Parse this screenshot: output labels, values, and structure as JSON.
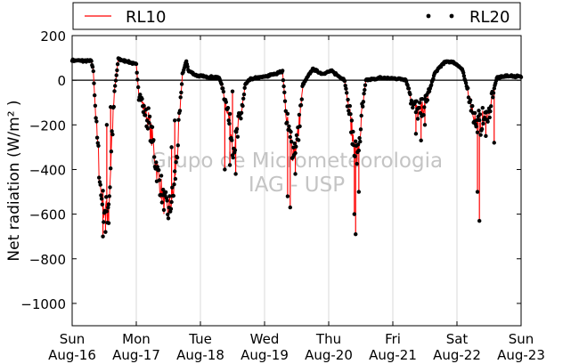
{
  "chart_data": {
    "type": "line",
    "title": "",
    "xlabel": "",
    "ylabel": "Net radiation (W/m² )",
    "ylim": [
      -1100,
      200
    ],
    "xlim": [
      0,
      7
    ],
    "yticks": [
      200,
      0,
      -200,
      -400,
      -600,
      -800,
      -1000
    ],
    "ytick_labels": [
      "200",
      "0",
      "−200",
      "−400",
      "−600",
      "−800",
      "−1000"
    ],
    "xticks": [
      {
        "x": 0,
        "day": "Sun",
        "date": "Aug-16"
      },
      {
        "x": 1,
        "day": "Mon",
        "date": "Aug-17"
      },
      {
        "x": 2,
        "day": "Tue",
        "date": "Aug-18"
      },
      {
        "x": 3,
        "day": "Wed",
        "date": "Aug-19"
      },
      {
        "x": 4,
        "day": "Thu",
        "date": "Aug-20"
      },
      {
        "x": 5,
        "day": "Fri",
        "date": "Aug-21"
      },
      {
        "x": 6,
        "day": "Sat",
        "date": "Aug-22"
      },
      {
        "x": 7,
        "day": "Sun",
        "date": "Aug-23"
      }
    ],
    "grid": "vertical",
    "zero_line": true,
    "legend": {
      "placement": "top",
      "entries": [
        {
          "label": "RL10",
          "style": "line",
          "color": "#ff0000"
        },
        {
          "label": "RL20",
          "style": "dots",
          "color": "#000000"
        }
      ]
    },
    "watermark": [
      "Grupo de Micrometeorologia",
      "IAG - USP"
    ],
    "series_keypoints": [
      {
        "x": 0.0,
        "y": 90
      },
      {
        "x": 0.3,
        "y": 85
      },
      {
        "x": 0.33,
        "y": 40
      },
      {
        "x": 0.38,
        "y": -220
      },
      {
        "x": 0.44,
        "y": -480
      },
      {
        "x": 0.5,
        "y": -580
      },
      {
        "x": 0.55,
        "y": -600
      },
      {
        "x": 0.58,
        "y": -520
      },
      {
        "x": 0.62,
        "y": -250
      },
      {
        "x": 0.66,
        "y": -50
      },
      {
        "x": 0.72,
        "y": 95
      },
      {
        "x": 0.85,
        "y": 85
      },
      {
        "x": 0.96,
        "y": 75
      },
      {
        "x": 1.0,
        "y": 70
      },
      {
        "x": 1.04,
        "y": -60
      },
      {
        "x": 1.2,
        "y": -190
      },
      {
        "x": 1.35,
        "y": -440
      },
      {
        "x": 1.45,
        "y": -570
      },
      {
        "x": 1.5,
        "y": -590
      },
      {
        "x": 1.58,
        "y": -500
      },
      {
        "x": 1.66,
        "y": -250
      },
      {
        "x": 1.72,
        "y": 30
      },
      {
        "x": 1.78,
        "y": 85
      },
      {
        "x": 1.82,
        "y": 40
      },
      {
        "x": 1.95,
        "y": 20
      },
      {
        "x": 2.3,
        "y": 10
      },
      {
        "x": 2.4,
        "y": -100
      },
      {
        "x": 2.52,
        "y": -300
      },
      {
        "x": 2.62,
        "y": -180
      },
      {
        "x": 2.7,
        "y": -20
      },
      {
        "x": 2.78,
        "y": 5
      },
      {
        "x": 3.0,
        "y": 15
      },
      {
        "x": 3.28,
        "y": 40
      },
      {
        "x": 3.35,
        "y": -200
      },
      {
        "x": 3.45,
        "y": -320
      },
      {
        "x": 3.52,
        "y": -250
      },
      {
        "x": 3.6,
        "y": -20
      },
      {
        "x": 3.75,
        "y": 50
      },
      {
        "x": 3.9,
        "y": 30
      },
      {
        "x": 4.05,
        "y": 40
      },
      {
        "x": 4.25,
        "y": 0
      },
      {
        "x": 4.38,
        "y": -260
      },
      {
        "x": 4.45,
        "y": -350
      },
      {
        "x": 4.52,
        "y": -150
      },
      {
        "x": 4.58,
        "y": 0
      },
      {
        "x": 4.8,
        "y": 10
      },
      {
        "x": 5.2,
        "y": 5
      },
      {
        "x": 5.32,
        "y": -110
      },
      {
        "x": 5.4,
        "y": -150
      },
      {
        "x": 5.48,
        "y": -120
      },
      {
        "x": 5.56,
        "y": -60
      },
      {
        "x": 5.65,
        "y": 30
      },
      {
        "x": 5.8,
        "y": 80
      },
      {
        "x": 5.92,
        "y": 85
      },
      {
        "x": 6.0,
        "y": 70
      },
      {
        "x": 6.08,
        "y": 50
      },
      {
        "x": 6.18,
        "y": -60
      },
      {
        "x": 6.3,
        "y": -200
      },
      {
        "x": 6.4,
        "y": -180
      },
      {
        "x": 6.5,
        "y": -140
      },
      {
        "x": 6.62,
        "y": 10
      },
      {
        "x": 6.8,
        "y": 20
      },
      {
        "x": 7.0,
        "y": 15
      }
    ],
    "spikes": [
      {
        "x": 0.48,
        "y": -700
      },
      {
        "x": 0.52,
        "y": -680
      },
      {
        "x": 0.57,
        "y": -640
      },
      {
        "x": 0.54,
        "y": -200
      },
      {
        "x": 0.6,
        "y": -120
      },
      {
        "x": 1.55,
        "y": -300
      },
      {
        "x": 1.6,
        "y": -180
      },
      {
        "x": 2.38,
        "y": -400
      },
      {
        "x": 2.46,
        "y": -380
      },
      {
        "x": 2.55,
        "y": -420
      },
      {
        "x": 2.5,
        "y": -50
      },
      {
        "x": 3.4,
        "y": -570
      },
      {
        "x": 3.36,
        "y": -520
      },
      {
        "x": 3.48,
        "y": -420
      },
      {
        "x": 4.42,
        "y": -690
      },
      {
        "x": 4.4,
        "y": -600
      },
      {
        "x": 4.47,
        "y": -500
      },
      {
        "x": 5.36,
        "y": -240
      },
      {
        "x": 5.44,
        "y": -270
      },
      {
        "x": 5.5,
        "y": -200
      },
      {
        "x": 6.35,
        "y": -630
      },
      {
        "x": 6.32,
        "y": -500
      },
      {
        "x": 6.45,
        "y": -250
      },
      {
        "x": 6.58,
        "y": -280
      }
    ]
  }
}
